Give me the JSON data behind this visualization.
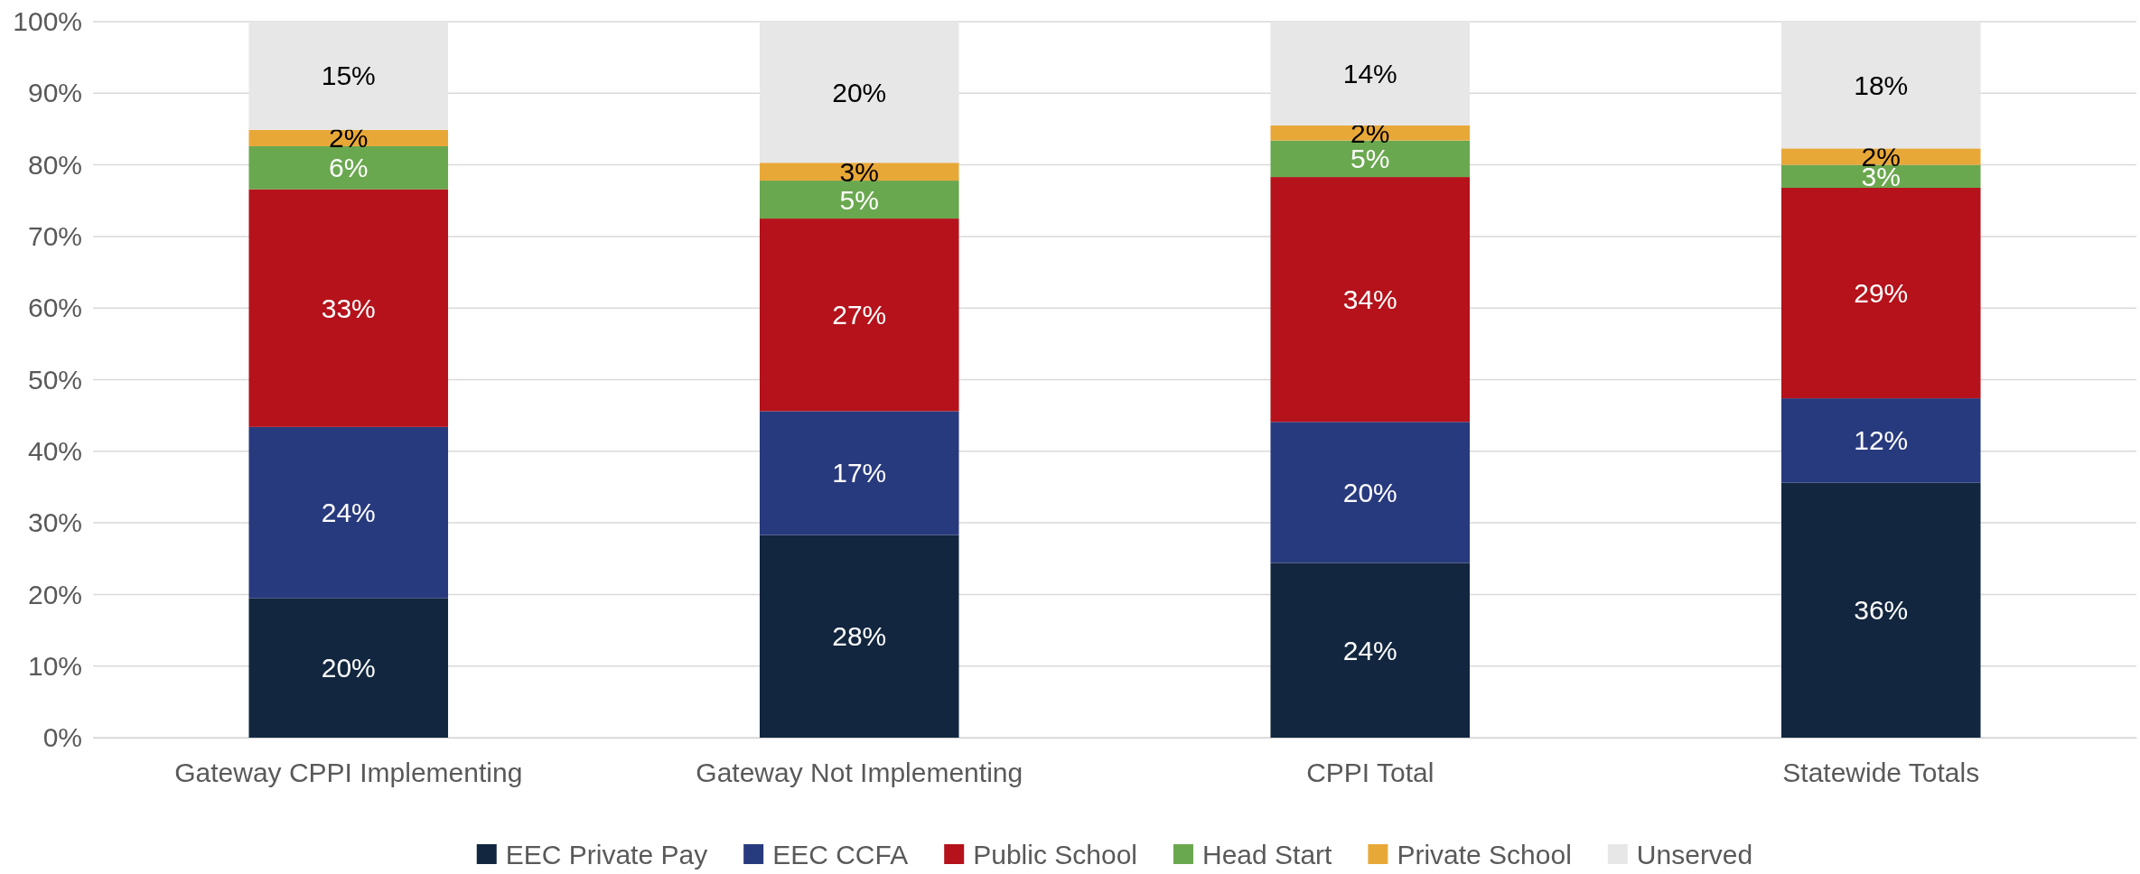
{
  "chart_data": {
    "type": "bar",
    "stacked": true,
    "categories": [
      "Gateway CPPI Implementing",
      "Gateway Not Implementing",
      "CPPI Total",
      "Statewide Totals"
    ],
    "ylim": [
      0,
      100
    ],
    "yticks": [
      {
        "value": 0,
        "label": "0%"
      },
      {
        "value": 10,
        "label": "10%"
      },
      {
        "value": 20,
        "label": "20%"
      },
      {
        "value": 30,
        "label": "30%"
      },
      {
        "value": 40,
        "label": "40%"
      },
      {
        "value": 50,
        "label": "50%"
      },
      {
        "value": 60,
        "label": "60%"
      },
      {
        "value": 70,
        "label": "70%"
      },
      {
        "value": 80,
        "label": "80%"
      },
      {
        "value": 90,
        "label": "90%"
      },
      {
        "value": 100,
        "label": "100%"
      }
    ],
    "grid": "y",
    "legend": "bottom",
    "series": [
      {
        "name": "EEC Private Pay",
        "color": "#12263f",
        "values": [
          19.5,
          28.3,
          24.4,
          35.6
        ],
        "value_labels": [
          "20%",
          "28%",
          "24%",
          "36%"
        ]
      },
      {
        "name": "EEC CCFA",
        "color": "#283a7e",
        "values": [
          23.9,
          17.3,
          19.7,
          11.8
        ],
        "value_labels": [
          "24%",
          "17%",
          "20%",
          "12%"
        ]
      },
      {
        "name": "Public School",
        "color": "#b5121b",
        "values": [
          33.2,
          26.9,
          34.2,
          29.4
        ],
        "value_labels": [
          "33%",
          "27%",
          "34%",
          "29%"
        ]
      },
      {
        "name": "Head Start",
        "color": "#6aa84f",
        "values": [
          6.0,
          5.3,
          5.1,
          3.2
        ],
        "value_labels": [
          "6%",
          "5%",
          "5%",
          "3%"
        ]
      },
      {
        "name": "Private School",
        "color": "#e8a838",
        "values": [
          2.3,
          2.5,
          2.1,
          2.3
        ],
        "value_labels": [
          "2%",
          "3%",
          "2%",
          "2%"
        ]
      },
      {
        "name": "Unserved",
        "color": "#e7e7e7",
        "values": [
          15.1,
          19.7,
          14.5,
          17.7
        ],
        "value_labels": [
          "15%",
          "20%",
          "14%",
          "18%"
        ]
      }
    ]
  }
}
